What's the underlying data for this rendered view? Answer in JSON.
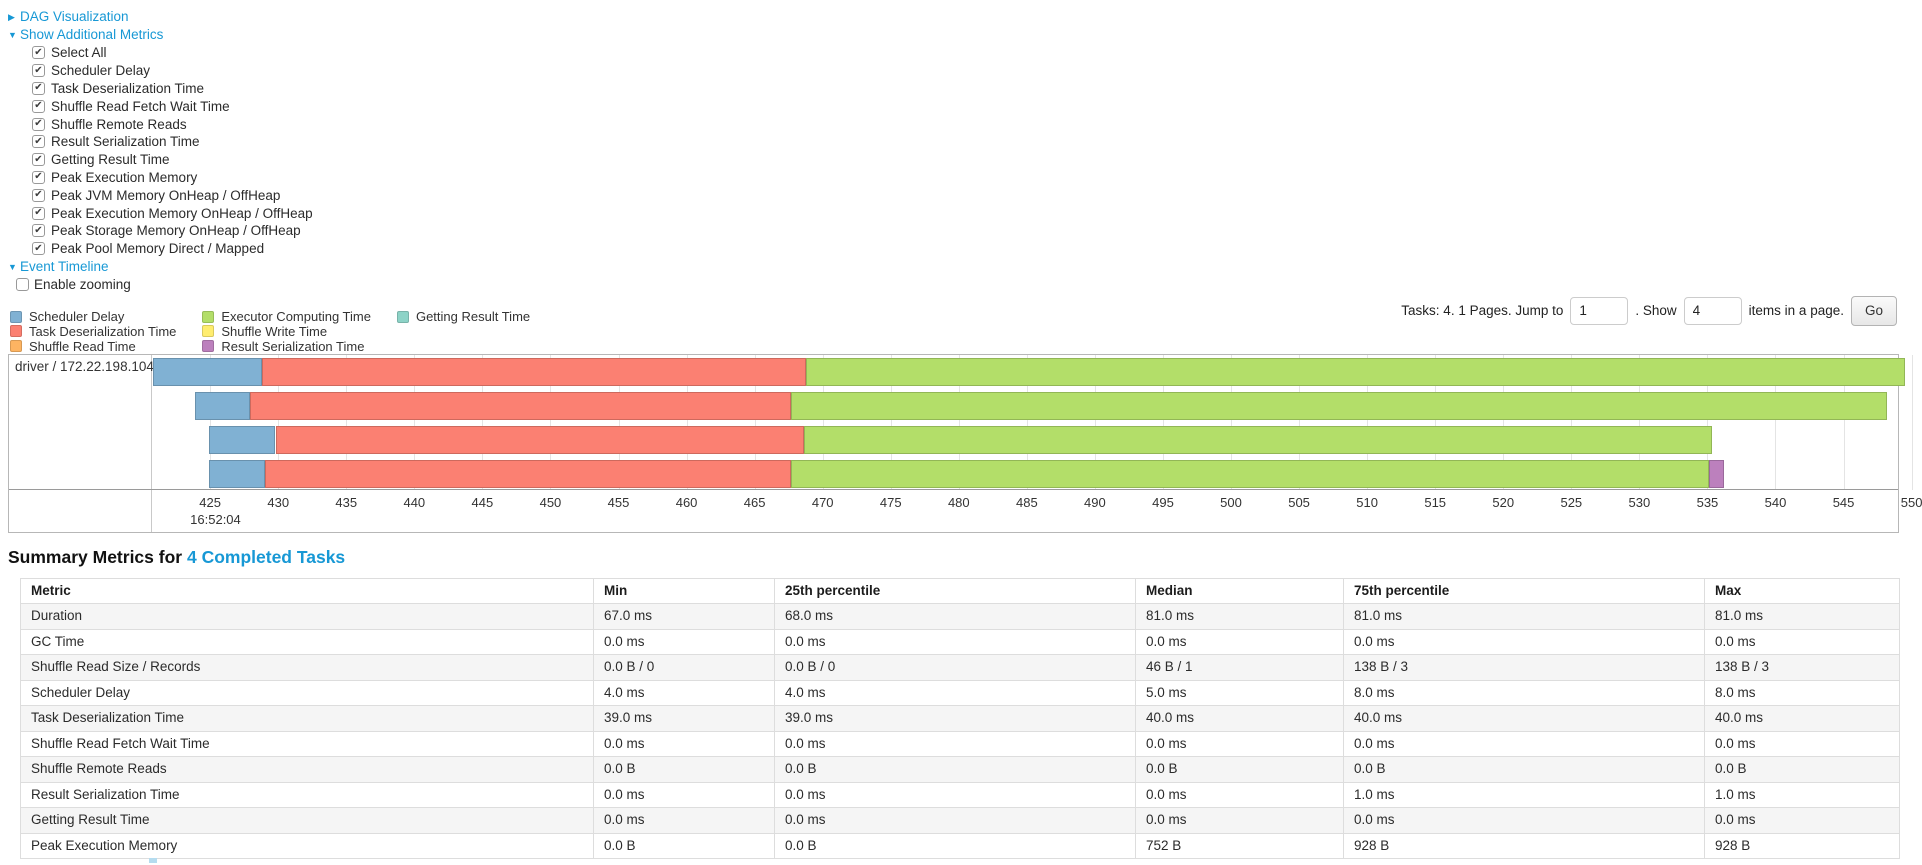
{
  "controls": {
    "dag_visualization": "DAG Visualization",
    "show_additional_metrics": "Show Additional Metrics",
    "metrics_checkboxes": [
      "Select All",
      "Scheduler Delay",
      "Task Deserialization Time",
      "Shuffle Read Fetch Wait Time",
      "Shuffle Remote Reads",
      "Result Serialization Time",
      "Getting Result Time",
      "Peak Execution Memory",
      "Peak JVM Memory OnHeap / OffHeap",
      "Peak Execution Memory OnHeap / OffHeap",
      "Peak Storage Memory OnHeap / OffHeap",
      "Peak Pool Memory Direct / Mapped"
    ],
    "event_timeline": "Event Timeline",
    "enable_zooming": "Enable zooming"
  },
  "pagination": {
    "tasks_text": "Tasks: 4. 1 Pages. Jump to",
    "jump_value": "1",
    "show_label": ". Show",
    "show_value": "4",
    "items_text": "items in a page.",
    "go_label": "Go"
  },
  "legend": {
    "columns": [
      [
        {
          "label": "Scheduler Delay",
          "color": "#80B1D3"
        },
        {
          "label": "Task Deserialization Time",
          "color": "#FB8072"
        },
        {
          "label": "Shuffle Read Time",
          "color": "#FDB462"
        }
      ],
      [
        {
          "label": "Executor Computing Time",
          "color": "#B3DE69"
        },
        {
          "label": "Shuffle Write Time",
          "color": "#FFED6F"
        },
        {
          "label": "Result Serialization Time",
          "color": "#BC80BD"
        }
      ],
      [
        {
          "label": "Getting Result Time",
          "color": "#8DD3C7"
        }
      ]
    ]
  },
  "chart_data": {
    "type": "timeline",
    "group_label": "driver / 172.22.198.104",
    "x_axis": {
      "unit": "ms",
      "start": 420.8,
      "end": 549.0,
      "ticks": [
        425,
        430,
        435,
        440,
        445,
        450,
        455,
        460,
        465,
        470,
        475,
        480,
        485,
        490,
        495,
        500,
        505,
        510,
        515,
        520,
        525,
        530,
        535,
        540,
        545,
        550
      ],
      "time_label": "16:52:04",
      "time_label_tick": 425
    },
    "tasks": [
      {
        "segments": [
          {
            "name": "Scheduler Delay",
            "color": "#80B1D3",
            "start": 420.8,
            "end": 428.8
          },
          {
            "name": "Task Deserialization Time",
            "color": "#FB8072",
            "start": 428.8,
            "end": 468.8
          },
          {
            "name": "Executor Computing Time",
            "color": "#B3DE69",
            "start": 468.8,
            "end": 549.5
          }
        ]
      },
      {
        "segments": [
          {
            "name": "Scheduler Delay",
            "color": "#80B1D3",
            "start": 423.9,
            "end": 427.9
          },
          {
            "name": "Task Deserialization Time",
            "color": "#FB8072",
            "start": 427.9,
            "end": 467.7
          },
          {
            "name": "Executor Computing Time",
            "color": "#B3DE69",
            "start": 467.7,
            "end": 548.2
          }
        ]
      },
      {
        "segments": [
          {
            "name": "Scheduler Delay",
            "color": "#80B1D3",
            "start": 424.9,
            "end": 429.8
          },
          {
            "name": "Task Deserialization Time",
            "color": "#FB8072",
            "start": 429.8,
            "end": 468.6
          },
          {
            "name": "Executor Computing Time",
            "color": "#B3DE69",
            "start": 468.6,
            "end": 535.3
          }
        ]
      },
      {
        "segments": [
          {
            "name": "Scheduler Delay",
            "color": "#80B1D3",
            "start": 424.9,
            "end": 429.0
          },
          {
            "name": "Task Deserialization Time",
            "color": "#FB8072",
            "start": 429.0,
            "end": 467.7
          },
          {
            "name": "Executor Computing Time",
            "color": "#B3DE69",
            "start": 467.7,
            "end": 535.1
          },
          {
            "name": "Result Serialization Time",
            "color": "#BC80BD",
            "start": 535.1,
            "end": 536.2
          }
        ]
      }
    ]
  },
  "summary": {
    "title_prefix": "Summary Metrics for",
    "title_link": "4 Completed Tasks",
    "table": {
      "headers": [
        "Metric",
        "Min",
        "25th percentile",
        "Median",
        "75th percentile",
        "Max"
      ],
      "rows": [
        [
          "Duration",
          "67.0 ms",
          "68.0 ms",
          "81.0 ms",
          "81.0 ms",
          "81.0 ms"
        ],
        [
          "GC Time",
          "0.0 ms",
          "0.0 ms",
          "0.0 ms",
          "0.0 ms",
          "0.0 ms"
        ],
        [
          "Shuffle Read Size / Records",
          "0.0 B / 0",
          "0.0 B / 0",
          "46 B / 1",
          "138 B / 3",
          "138 B / 3"
        ],
        [
          "Scheduler Delay",
          "4.0 ms",
          "4.0 ms",
          "5.0 ms",
          "8.0 ms",
          "8.0 ms"
        ],
        [
          "Task Deserialization Time",
          "39.0 ms",
          "39.0 ms",
          "40.0 ms",
          "40.0 ms",
          "40.0 ms"
        ],
        [
          "Shuffle Read Fetch Wait Time",
          "0.0 ms",
          "0.0 ms",
          "0.0 ms",
          "0.0 ms",
          "0.0 ms"
        ],
        [
          "Shuffle Remote Reads",
          "0.0 B",
          "0.0 B",
          "0.0 B",
          "0.0 B",
          "0.0 B"
        ],
        [
          "Result Serialization Time",
          "0.0 ms",
          "0.0 ms",
          "0.0 ms",
          "1.0 ms",
          "1.0 ms"
        ],
        [
          "Getting Result Time",
          "0.0 ms",
          "0.0 ms",
          "0.0 ms",
          "0.0 ms",
          "0.0 ms"
        ],
        [
          "Peak Execution Memory",
          "0.0 B",
          "0.0 B",
          "752 B",
          "928 B",
          "928 B"
        ]
      ]
    }
  },
  "colors": {
    "link": "#1798d5",
    "grid": "#e4e4e4",
    "table_stripe": "#f5f5f5"
  }
}
